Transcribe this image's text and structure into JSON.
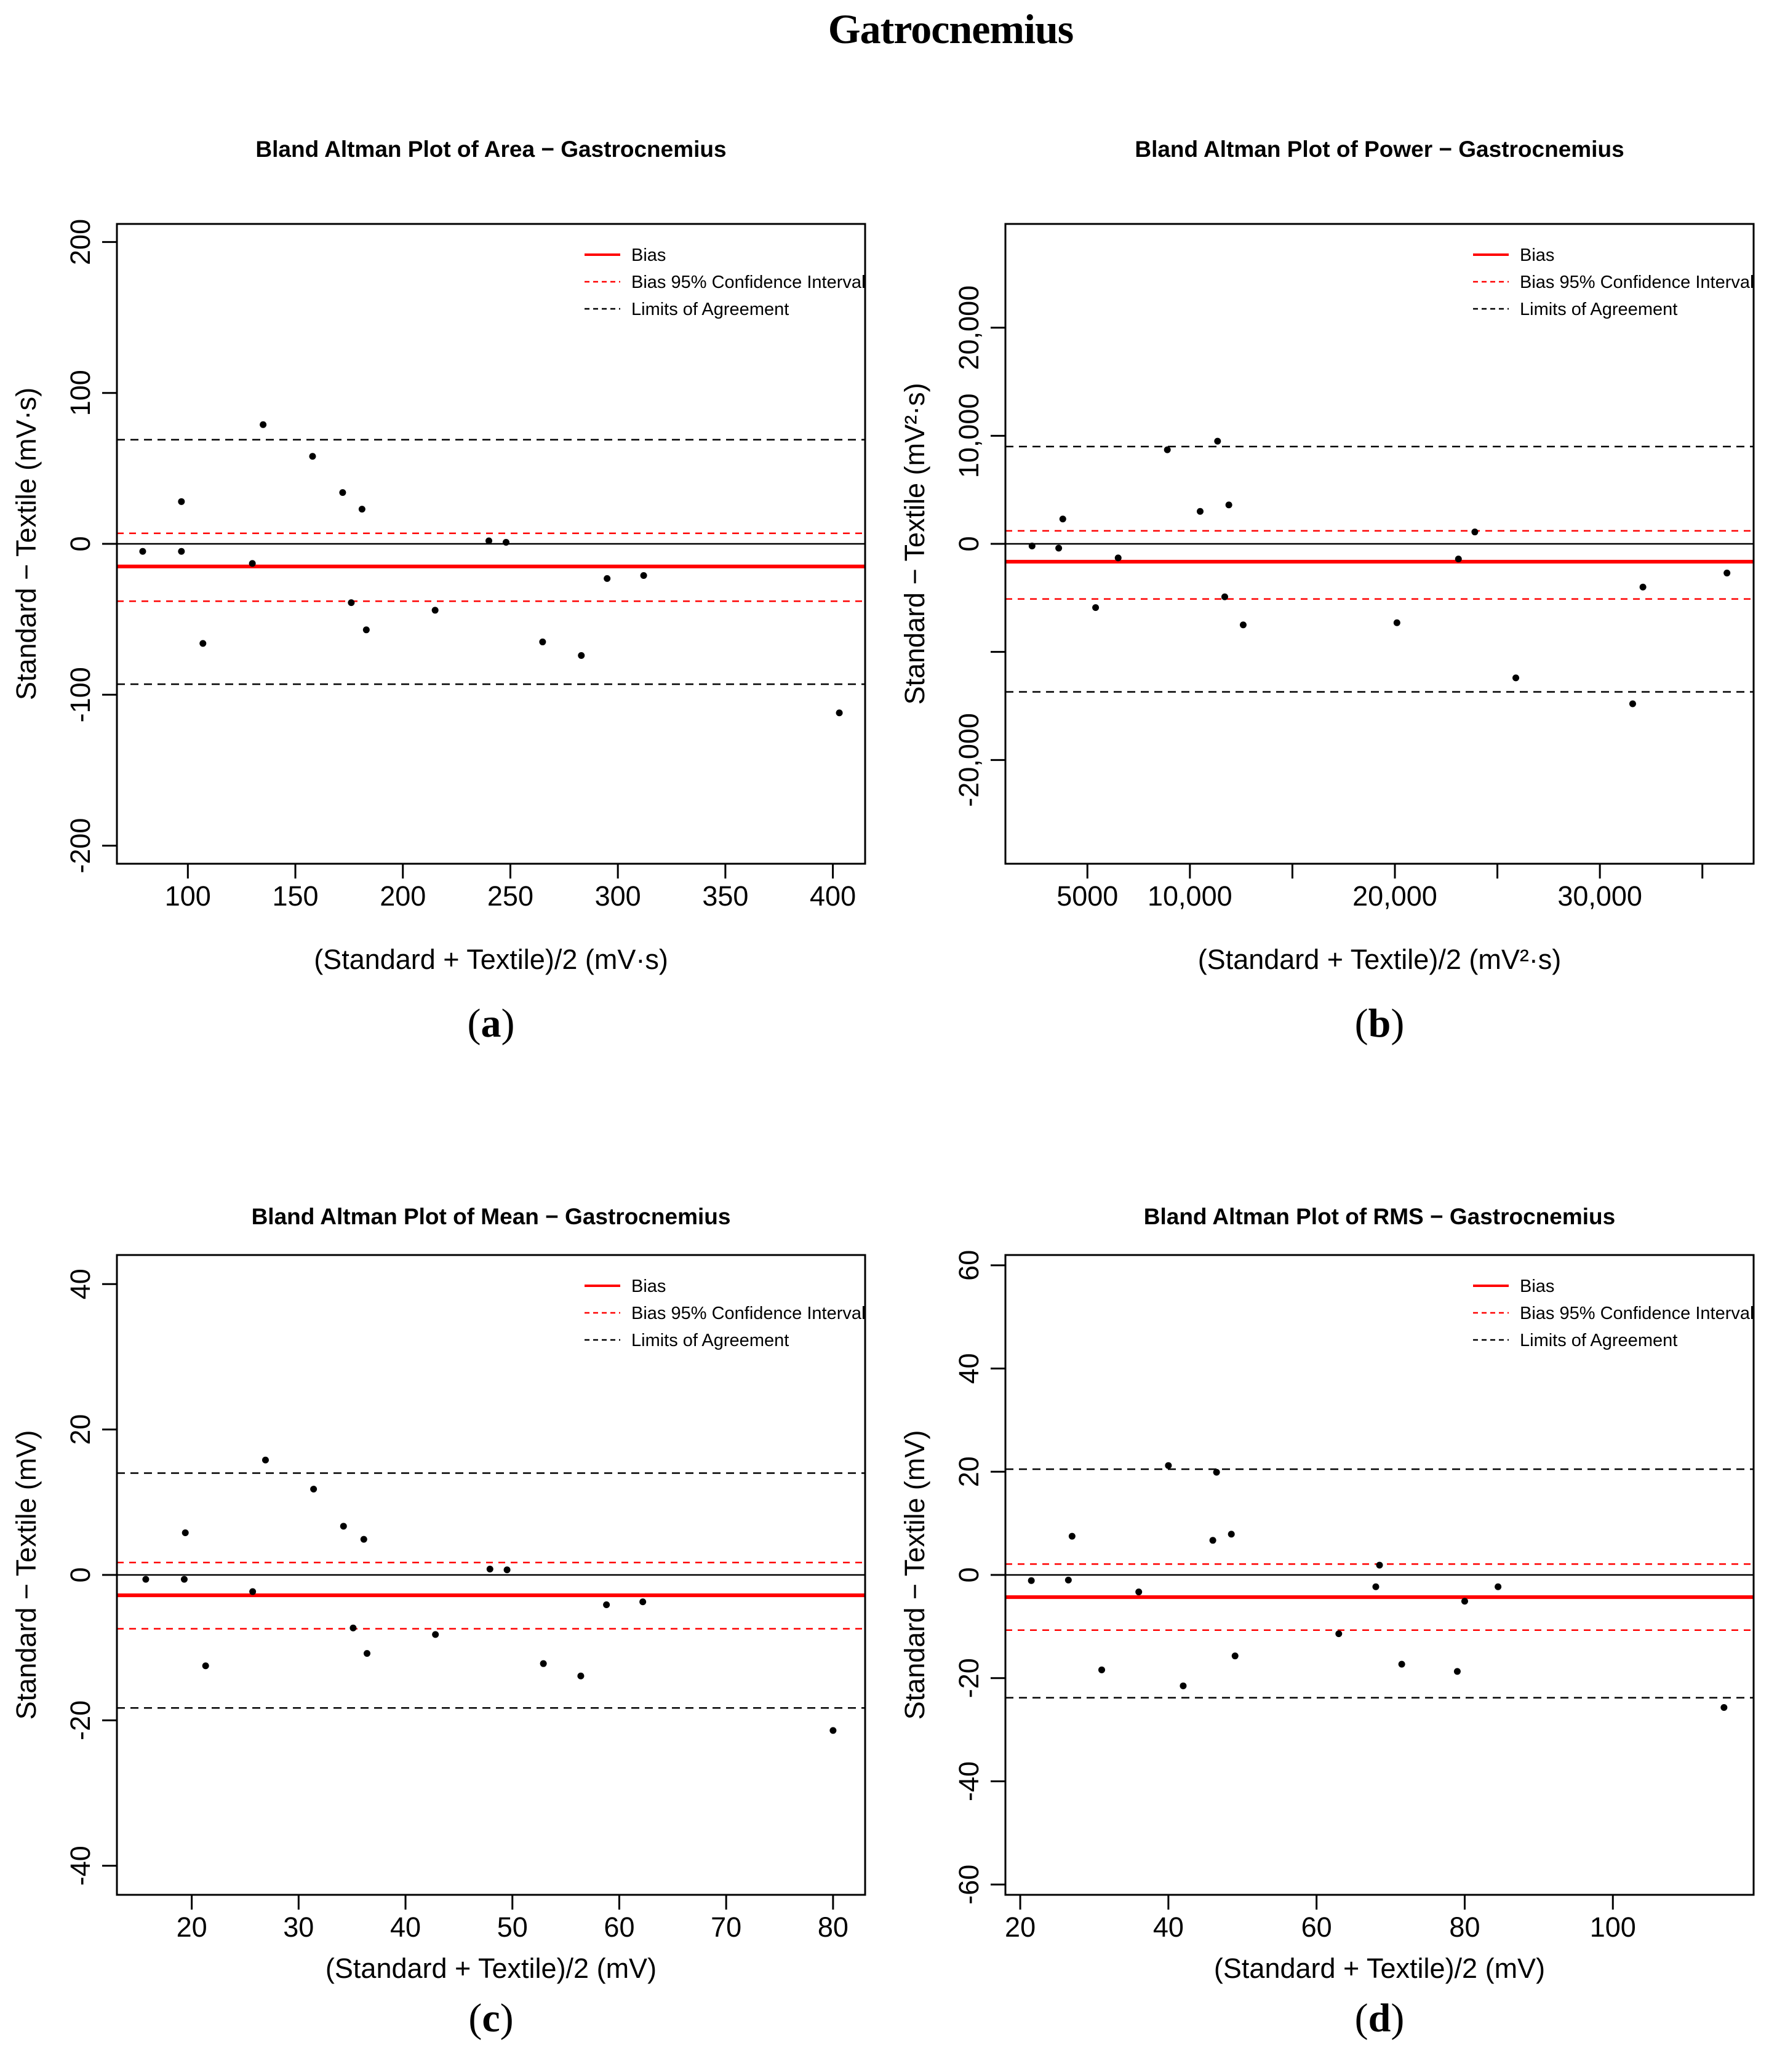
{
  "page_title": "Gatrocnemius",
  "colors": {
    "accent_red": "#FF0000",
    "ink_black": "#000000",
    "background": "#FFFFFF"
  },
  "legend": [
    {
      "style": "solid-red",
      "label": "Bias"
    },
    {
      "style": "dashed-red",
      "label": "Bias 95% Confidence Interval"
    },
    {
      "style": "dashed-black",
      "label": "Limits of Agreement"
    }
  ],
  "chart_data": [
    {
      "type": "scatter",
      "panel_letter": "a",
      "title": "Bland Altman Plot of Area − Gastrocnemius",
      "xlabel": "(Standard + Textile)/2 (mV·s)",
      "ylabel": "Standard − Textile (mV·s)",
      "xlim": [
        67,
        415
      ],
      "ylim": [
        -212,
        212
      ],
      "xticks": [
        {
          "v": 100,
          "label": "100"
        },
        {
          "v": 150,
          "label": "150"
        },
        {
          "v": 200,
          "label": "200"
        },
        {
          "v": 250,
          "label": "250"
        },
        {
          "v": 300,
          "label": "300"
        },
        {
          "v": 350,
          "label": "350"
        },
        {
          "v": 400,
          "label": "400"
        }
      ],
      "yticks": [
        {
          "v": 200,
          "label": "200"
        },
        {
          "v": 100,
          "label": "100"
        },
        {
          "v": 0,
          "label": "0"
        },
        {
          "v": -100,
          "label": "-100"
        },
        {
          "v": -200,
          "label": "-200"
        }
      ],
      "lines": {
        "zero": 0,
        "bias": -15,
        "ci_upper": 7,
        "ci_lower": -38,
        "loa_upper": 69,
        "loa_lower": -93
      },
      "points": [
        [
          79,
          -5
        ],
        [
          97,
          28
        ],
        [
          97,
          -5
        ],
        [
          107,
          -66
        ],
        [
          130,
          -13
        ],
        [
          135,
          79
        ],
        [
          158,
          58
        ],
        [
          172,
          34
        ],
        [
          176,
          -39
        ],
        [
          181,
          23
        ],
        [
          183,
          -57
        ],
        [
          215,
          -44
        ],
        [
          240,
          2
        ],
        [
          248,
          1
        ],
        [
          265,
          -65
        ],
        [
          283,
          -74
        ],
        [
          295,
          -23
        ],
        [
          312,
          -21
        ],
        [
          403,
          -112
        ]
      ]
    },
    {
      "type": "scatter",
      "panel_letter": "b",
      "title": "Bland Altman Plot of Power − Gastrocnemius",
      "xlabel": "(Standard + Textile)/2 (mV²·s)",
      "ylabel": "Standard − Textile (mV²·s)",
      "xlim": [
        1000,
        37500
      ],
      "ylim": [
        -29600,
        29600
      ],
      "xticks": [
        {
          "v": 5000,
          "label": "5000"
        },
        {
          "v": 10000,
          "label": "10,000"
        },
        {
          "v": 15000,
          "label": ""
        },
        {
          "v": 20000,
          "label": "20,000"
        },
        {
          "v": 25000,
          "label": ""
        },
        {
          "v": 30000,
          "label": "30,000"
        },
        {
          "v": 35000,
          "label": ""
        }
      ],
      "yticks": [
        {
          "v": 20000,
          "label": "20,000"
        },
        {
          "v": 10000,
          "label": "10,000"
        },
        {
          "v": 0,
          "label": "0"
        },
        {
          "v": -10000,
          "label": ""
        },
        {
          "v": -20000,
          "label": "-20,000"
        }
      ],
      "lines": {
        "zero": 0,
        "bias": -1650,
        "ci_upper": 1200,
        "ci_lower": -5100,
        "loa_upper": 9000,
        "loa_lower": -13700
      },
      "points": [
        [
          2300,
          -200
        ],
        [
          3600,
          -400
        ],
        [
          3800,
          2300
        ],
        [
          5400,
          -5900
        ],
        [
          6500,
          -1300
        ],
        [
          8900,
          8700
        ],
        [
          10500,
          3000
        ],
        [
          11350,
          9500
        ],
        [
          11700,
          -4900
        ],
        [
          11900,
          3600
        ],
        [
          12600,
          -7500
        ],
        [
          20100,
          -7300
        ],
        [
          23100,
          -1400
        ],
        [
          23900,
          1100
        ],
        [
          25900,
          -12400
        ],
        [
          31600,
          -14800
        ],
        [
          32100,
          -4000
        ],
        [
          36200,
          -2700
        ]
      ]
    },
    {
      "type": "scatter",
      "panel_letter": "c",
      "title": "Bland Altman Plot of Mean − Gastrocnemius",
      "xlabel": "(Standard + Textile)/2 (mV)",
      "ylabel": "Standard − Textile (mV)",
      "xlim": [
        13,
        83
      ],
      "ylim": [
        -44,
        44
      ],
      "xticks": [
        {
          "v": 20,
          "label": "20"
        },
        {
          "v": 30,
          "label": "30"
        },
        {
          "v": 40,
          "label": "40"
        },
        {
          "v": 50,
          "label": "50"
        },
        {
          "v": 60,
          "label": "60"
        },
        {
          "v": 70,
          "label": "70"
        },
        {
          "v": 80,
          "label": "80"
        }
      ],
      "yticks": [
        {
          "v": 40,
          "label": "40"
        },
        {
          "v": 20,
          "label": "20"
        },
        {
          "v": 0,
          "label": "0"
        },
        {
          "v": -20,
          "label": "-20"
        },
        {
          "v": -40,
          "label": "-40"
        }
      ],
      "lines": {
        "zero": 0,
        "bias": -2.8,
        "ci_upper": 1.7,
        "ci_lower": -7.4,
        "loa_upper": 14,
        "loa_lower": -18.3
      },
      "points": [
        [
          15.7,
          -0.6
        ],
        [
          19.4,
          5.8
        ],
        [
          19.3,
          -0.6
        ],
        [
          21.3,
          -12.5
        ],
        [
          25.7,
          -2.3
        ],
        [
          26.9,
          15.8
        ],
        [
          31.4,
          11.8
        ],
        [
          34.2,
          6.7
        ],
        [
          35.1,
          -7.3
        ],
        [
          36.1,
          4.9
        ],
        [
          36.4,
          -10.8
        ],
        [
          42.8,
          -8.2
        ],
        [
          47.9,
          0.8
        ],
        [
          49.5,
          0.7
        ],
        [
          52.9,
          -12.2
        ],
        [
          56.4,
          -13.9
        ],
        [
          58.8,
          -4.1
        ],
        [
          62.2,
          -3.7
        ],
        [
          80,
          -21.4
        ]
      ]
    },
    {
      "type": "scatter",
      "panel_letter": "d",
      "title": "Bland Altman Plot of RMS − Gastrocnemius",
      "xlabel": "(Standard + Textile)/2 (mV)",
      "ylabel": "Standard − Textile (mV)",
      "xlim": [
        18,
        119
      ],
      "ylim": [
        -62,
        62
      ],
      "xticks": [
        {
          "v": 20,
          "label": "20"
        },
        {
          "v": 40,
          "label": "40"
        },
        {
          "v": 60,
          "label": "60"
        },
        {
          "v": 80,
          "label": "80"
        },
        {
          "v": 100,
          "label": "100"
        }
      ],
      "yticks": [
        {
          "v": 60,
          "label": "60"
        },
        {
          "v": 40,
          "label": "40"
        },
        {
          "v": 20,
          "label": "20"
        },
        {
          "v": 0,
          "label": "0"
        },
        {
          "v": -20,
          "label": "-20"
        },
        {
          "v": -40,
          "label": "-40"
        },
        {
          "v": -60,
          "label": "-60"
        }
      ],
      "lines": {
        "zero": 0,
        "bias": -4.3,
        "ci_upper": 2.1,
        "ci_lower": -10.7,
        "loa_upper": 20.5,
        "loa_lower": -23.8
      },
      "points": [
        [
          21.5,
          -1.1
        ],
        [
          26.5,
          -1.0
        ],
        [
          27,
          7.5
        ],
        [
          31,
          -18.4
        ],
        [
          36,
          -3.3
        ],
        [
          40,
          21.2
        ],
        [
          42,
          -21.5
        ],
        [
          46,
          6.7
        ],
        [
          46.5,
          19.9
        ],
        [
          48.5,
          7.9
        ],
        [
          49,
          -15.7
        ],
        [
          63,
          -11.4
        ],
        [
          68,
          -2.3
        ],
        [
          68.5,
          1.9
        ],
        [
          71.5,
          -17.3
        ],
        [
          79,
          -18.7
        ],
        [
          80,
          -5.1
        ],
        [
          84.5,
          -2.3
        ],
        [
          115,
          -25.7
        ]
      ]
    }
  ]
}
